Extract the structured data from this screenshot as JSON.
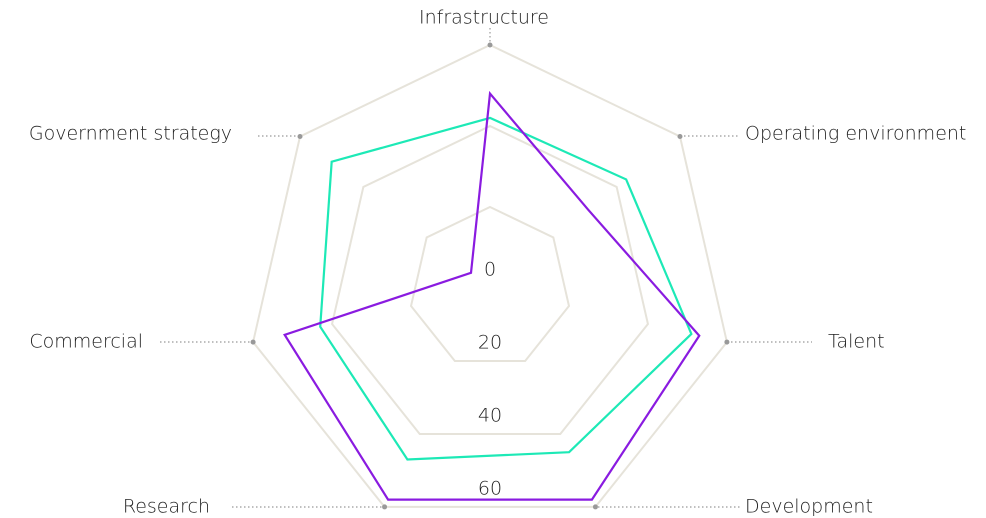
{
  "chart_data": {
    "type": "radar",
    "categories": [
      "Infrastructure",
      "Operating environment",
      "Talent",
      "Development",
      "Research",
      "Commercial",
      "Government strategy"
    ],
    "series": [
      {
        "color": "#1de9b6",
        "values": [
          42,
          43,
          51,
          45,
          47,
          43,
          50
        ]
      },
      {
        "color": "#8a1be0",
        "values": [
          48,
          31,
          53,
          58,
          58,
          52,
          6
        ]
      }
    ],
    "ylim": [
      0,
      60
    ],
    "yticks": [
      0,
      20,
      40,
      60
    ],
    "grid": true
  }
}
